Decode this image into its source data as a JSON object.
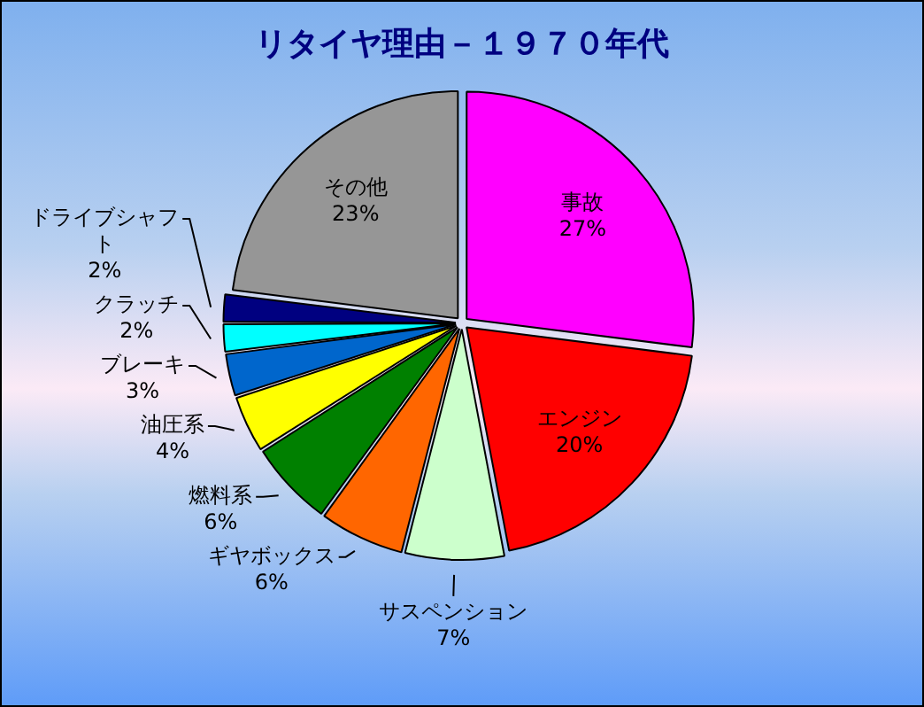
{
  "chart_data": {
    "type": "pie",
    "title": "リタイヤ理由－１９７０年代",
    "categories": [
      "事故",
      "エンジン",
      "サスペンション",
      "ギヤボックス",
      "燃料系",
      "油圧系",
      "ブレーキ",
      "クラッチ",
      "ドライブシャフト",
      "その他"
    ],
    "values": [
      27,
      20,
      7,
      6,
      6,
      4,
      3,
      2,
      2,
      23
    ],
    "value_labels": [
      "27%",
      "20%",
      "7%",
      "6%",
      "6%",
      "4%",
      "3%",
      "2%",
      "2%",
      "23%"
    ],
    "colors": [
      "#ff00ff",
      "#ff0000",
      "#ccffcc",
      "#ff6600",
      "#008000",
      "#ffff00",
      "#0066cc",
      "#00ffff",
      "#000080",
      "#969696"
    ]
  }
}
